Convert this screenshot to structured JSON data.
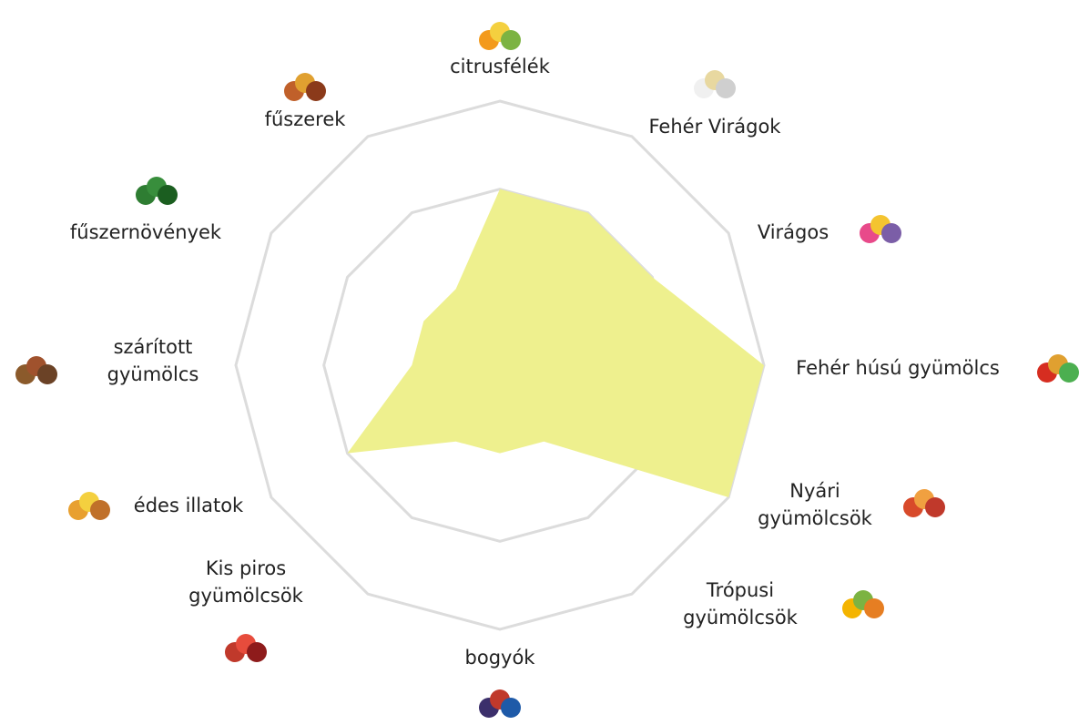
{
  "chart_data": {
    "type": "radar",
    "categories": [
      [
        "citrusfélék"
      ],
      [
        "Fehér Virágok"
      ],
      [
        "Virágos"
      ],
      [
        "Fehér húsú gyümölcs"
      ],
      [
        "Nyári",
        "gyümölcsök"
      ],
      [
        "Trópusi",
        "gyümölcsök"
      ],
      [
        "bogyók"
      ],
      [
        "Kis piros",
        "gyümölcsök"
      ],
      [
        "édes illatok"
      ],
      [
        "szárított",
        "gyümölcs"
      ],
      [
        "fűszernövények"
      ],
      [
        "fűszerek"
      ]
    ],
    "values": [
      2,
      2,
      2,
      3,
      3,
      1,
      1,
      1,
      2,
      1,
      1,
      1
    ],
    "color": "#eef08e",
    "rlim": [
      0,
      3
    ],
    "rticks": [
      2,
      3
    ],
    "grid": true
  }
}
